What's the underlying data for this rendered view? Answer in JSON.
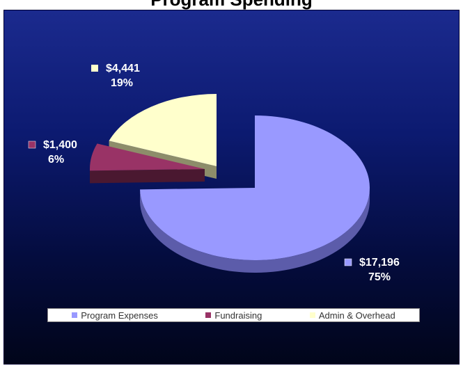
{
  "chart_data": {
    "type": "pie",
    "title": "Program Spending",
    "categories": [
      "Program Expenses",
      "Fundraising",
      "Admin & Overhead"
    ],
    "values": [
      17196,
      1400,
      4441
    ],
    "value_labels": [
      "$17,196",
      "$1,400",
      "$4,441"
    ],
    "percent_labels": [
      "75%",
      "6%",
      "19%"
    ],
    "colors": [
      "#9999ff",
      "#993366",
      "#ffffcc"
    ],
    "side_colors": [
      "#5c5caa",
      "#4a1830",
      "#8d8d6a"
    ],
    "legend_position": "bottom",
    "style": "3d-exploded"
  }
}
